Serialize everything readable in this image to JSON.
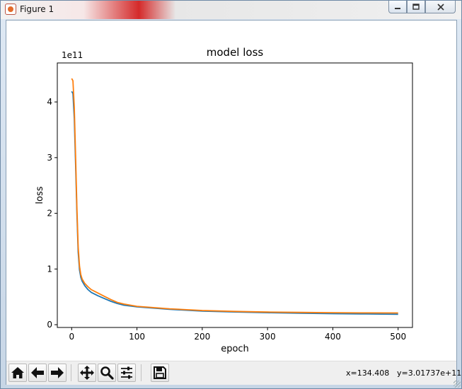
{
  "window": {
    "title": "Figure 1",
    "minimize_icon": "minimize-icon",
    "maximize_icon": "maximize-icon",
    "close_icon": "close-icon"
  },
  "toolbar": {
    "buttons": [
      {
        "name": "home-button",
        "icon": "home-icon"
      },
      {
        "name": "back-button",
        "icon": "arrow-left-icon"
      },
      {
        "name": "forward-button",
        "icon": "arrow-right-icon"
      },
      {
        "name": "pan-button",
        "icon": "move-icon"
      },
      {
        "name": "zoom-button",
        "icon": "magnifier-icon"
      },
      {
        "name": "configure-subplots-button",
        "icon": "sliders-icon"
      },
      {
        "name": "save-button",
        "icon": "floppy-disk-icon"
      }
    ],
    "coord_x": "x=134.408",
    "coord_y": "y=3.01737e+11"
  },
  "chart_data": {
    "type": "line",
    "title": "model loss",
    "xlabel": "epoch",
    "ylabel": "loss",
    "offset_text": "1e11",
    "xlim": [
      -22,
      522
    ],
    "ylim": [
      -0.05,
      4.7
    ],
    "xticks": [
      0,
      100,
      200,
      300,
      400,
      500
    ],
    "xtick_labels": [
      "0",
      "100",
      "200",
      "300",
      "400",
      "500"
    ],
    "yticks": [
      0,
      1,
      2,
      3,
      4
    ],
    "ytick_labels": [
      "0",
      "1",
      "2",
      "3",
      "4"
    ],
    "grid": false,
    "colors": [
      "#1f77b4",
      "#ff7f0e"
    ],
    "x": [
      0,
      2,
      4,
      6,
      8,
      10,
      12,
      14,
      16,
      20,
      25,
      30,
      40,
      50,
      60,
      70,
      80,
      100,
      150,
      200,
      250,
      300,
      350,
      400,
      450,
      500
    ],
    "series": [
      {
        "values": [
          4.19,
          4.15,
          3.7,
          2.9,
          2.0,
          1.3,
          0.98,
          0.85,
          0.78,
          0.7,
          0.63,
          0.58,
          0.52,
          0.47,
          0.42,
          0.38,
          0.35,
          0.32,
          0.275,
          0.245,
          0.228,
          0.215,
          0.205,
          0.198,
          0.192,
          0.188
        ]
      },
      {
        "values": [
          4.42,
          4.38,
          3.9,
          3.05,
          2.1,
          1.4,
          1.05,
          0.9,
          0.82,
          0.74,
          0.68,
          0.63,
          0.57,
          0.51,
          0.45,
          0.4,
          0.37,
          0.33,
          0.285,
          0.255,
          0.238,
          0.227,
          0.22,
          0.215,
          0.212,
          0.21
        ]
      }
    ]
  }
}
